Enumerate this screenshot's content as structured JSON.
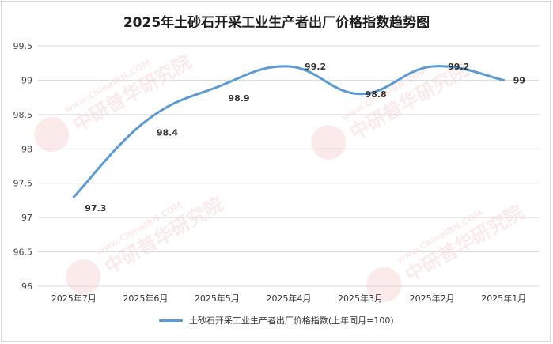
{
  "chart_data": {
    "type": "line",
    "title": "2025年土砂石开采工业生产者出厂价格指数趋势图",
    "categories": [
      "2025年7月",
      "2025年6月",
      "2025年5月",
      "2025年4月",
      "2025年3月",
      "2025年2月",
      "2025年1月"
    ],
    "series": [
      {
        "name": "土砂石开采工业生产者出厂价格指数(上年同月=100)",
        "values": [
          97.3,
          98.4,
          98.9,
          99.2,
          98.8,
          99.2,
          99
        ],
        "labels": [
          "97.3",
          "98.4",
          "98.9",
          "99.2",
          "98.8",
          "99.2",
          "99"
        ],
        "color": "#5b9bd5"
      }
    ],
    "yticks": [
      "99.5",
      "99",
      "98.5",
      "98",
      "97.5",
      "97",
      "96.5",
      "96"
    ],
    "ylim": [
      96,
      99.5
    ],
    "grid": true,
    "legend": "bottom",
    "watermark": "www.ChinaIRN.COM 中研普华研究院"
  }
}
